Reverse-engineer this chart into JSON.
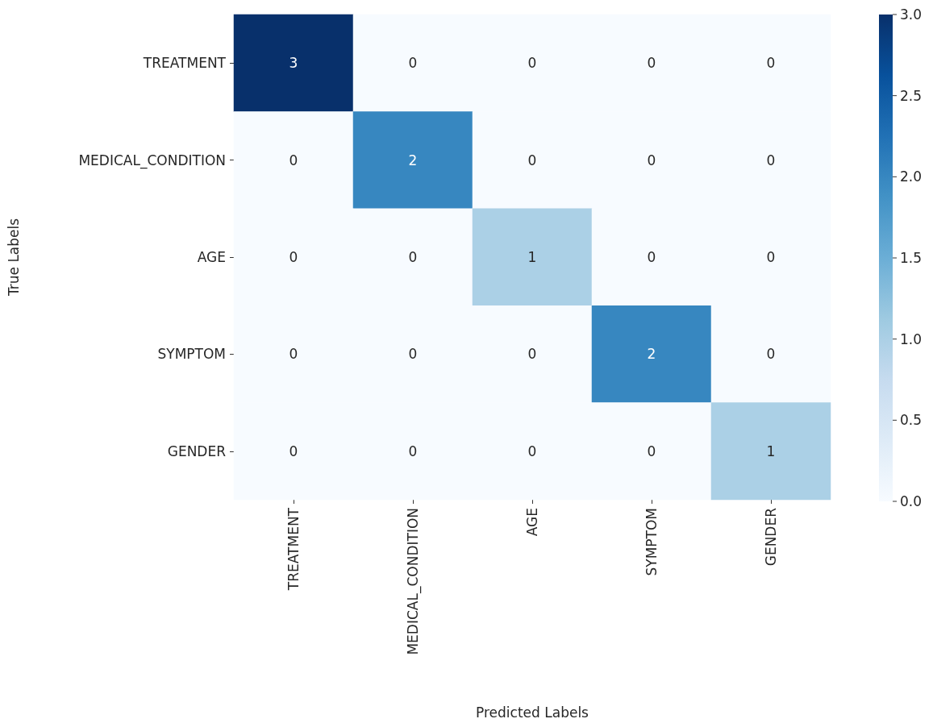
{
  "chart_data": {
    "type": "heatmap",
    "xlabel": "Predicted Labels",
    "ylabel": "True Labels",
    "categories": [
      "TREATMENT",
      "MEDICAL_CONDITION",
      "AGE",
      "SYMPTOM",
      "GENDER"
    ],
    "y_categories": [
      "TREATMENT",
      "MEDICAL_CONDITION",
      "AGE",
      "SYMPTOM",
      "GENDER"
    ],
    "cells": [
      [
        3,
        0,
        0,
        0,
        0
      ],
      [
        0,
        2,
        0,
        0,
        0
      ],
      [
        0,
        0,
        1,
        0,
        0
      ],
      [
        0,
        0,
        0,
        2,
        0
      ],
      [
        0,
        0,
        0,
        0,
        1
      ]
    ],
    "data_labels": true,
    "clim": [
      0,
      3
    ],
    "cticks": [
      {
        "value": 0,
        "label": "0.0"
      },
      {
        "value": 0.5,
        "label": "0.5"
      },
      {
        "value": 1,
        "label": "1.0"
      },
      {
        "value": 1.5,
        "label": "1.5"
      },
      {
        "value": 2,
        "label": "2.0"
      },
      {
        "value": 2.5,
        "label": "2.5"
      },
      {
        "value": 3,
        "label": "3.0"
      }
    ]
  }
}
